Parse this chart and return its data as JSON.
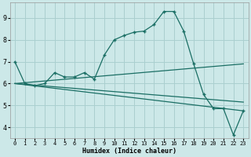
{
  "xlabel": "Humidex (Indice chaleur)",
  "bg_color": "#cce8e8",
  "grid_color": "#aacfcf",
  "line_color": "#1a6e64",
  "xlim": [
    -0.5,
    23.5
  ],
  "ylim": [
    3.5,
    9.7
  ],
  "xticks": [
    0,
    1,
    2,
    3,
    4,
    5,
    6,
    7,
    8,
    9,
    10,
    11,
    12,
    13,
    14,
    15,
    16,
    17,
    18,
    19,
    20,
    21,
    22,
    23
  ],
  "yticks": [
    4,
    5,
    6,
    7,
    8,
    9
  ],
  "main_x": [
    0,
    1,
    2,
    3,
    4,
    5,
    6,
    7,
    8,
    9,
    10,
    11,
    12,
    13,
    14,
    15,
    16,
    17,
    18,
    19,
    20,
    21,
    22,
    23
  ],
  "main_y": [
    7.0,
    6.0,
    5.9,
    6.0,
    6.5,
    6.3,
    6.3,
    6.5,
    6.2,
    7.3,
    8.0,
    8.2,
    8.35,
    8.4,
    8.7,
    9.3,
    9.3,
    8.4,
    6.9,
    5.5,
    4.85,
    4.85,
    3.65,
    4.75
  ],
  "line1_x": [
    0,
    23
  ],
  "line1_y": [
    6.0,
    6.9
  ],
  "line2_x": [
    0,
    23
  ],
  "line2_y": [
    6.0,
    5.15
  ],
  "line3_x": [
    0,
    23
  ],
  "line3_y": [
    6.0,
    4.75
  ]
}
